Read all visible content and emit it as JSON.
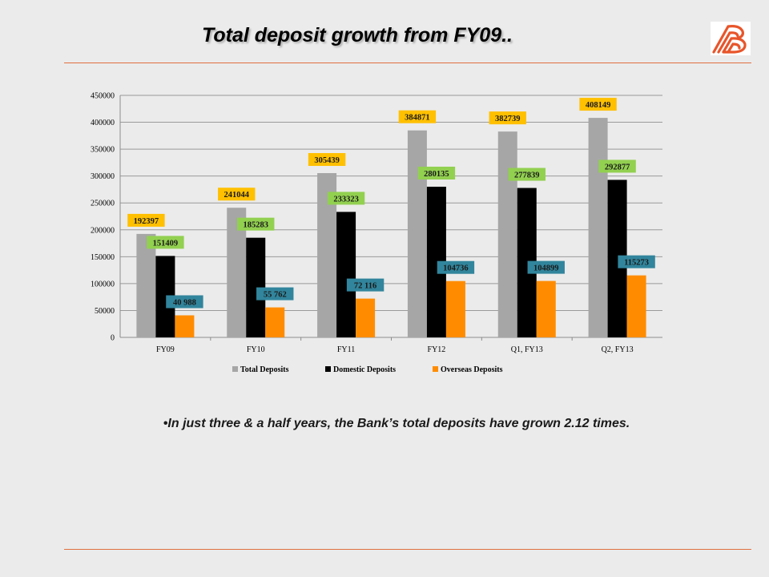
{
  "slide": {
    "title": "Total deposit growth from FY09..",
    "bullet": "In just three & a half years, the Bank’s total deposits have grown 2.12 times."
  },
  "colors": {
    "rule": "#e07040",
    "logo": "#e8552a"
  },
  "chart_data": {
    "type": "bar",
    "categories": [
      "FY09",
      "FY10",
      "FY11",
      "FY12",
      "Q1, FY13",
      "Q2, FY13"
    ],
    "ylim": [
      0,
      450000
    ],
    "yticks": [
      0,
      50000,
      100000,
      150000,
      200000,
      250000,
      300000,
      350000,
      400000,
      450000
    ],
    "grid": true,
    "legend_position": "bottom",
    "series": [
      {
        "name": "Total Deposits",
        "color": "#a6a6a6",
        "label_color": "#ffc000",
        "values": [
          192397,
          241044,
          305439,
          384871,
          382739,
          408149
        ],
        "labels": [
          "192397",
          "241044",
          "305439",
          "384871",
          "382739",
          "408149"
        ]
      },
      {
        "name": "Domestic Deposits",
        "color": "#000000",
        "label_color": "#92d050",
        "values": [
          151409,
          185283,
          233323,
          280135,
          277839,
          292877
        ],
        "labels": [
          "151409",
          "185283",
          "233323",
          "280135",
          "277839",
          "292877"
        ]
      },
      {
        "name": "Overseas Deposits",
        "color": "#ff8c00",
        "label_color": "#31859c",
        "values": [
          40988,
          55762,
          72116,
          104736,
          104899,
          115273
        ],
        "labels": [
          "40 988",
          "55 762",
          "72 116",
          "104736",
          "104899",
          "115273"
        ]
      }
    ]
  }
}
